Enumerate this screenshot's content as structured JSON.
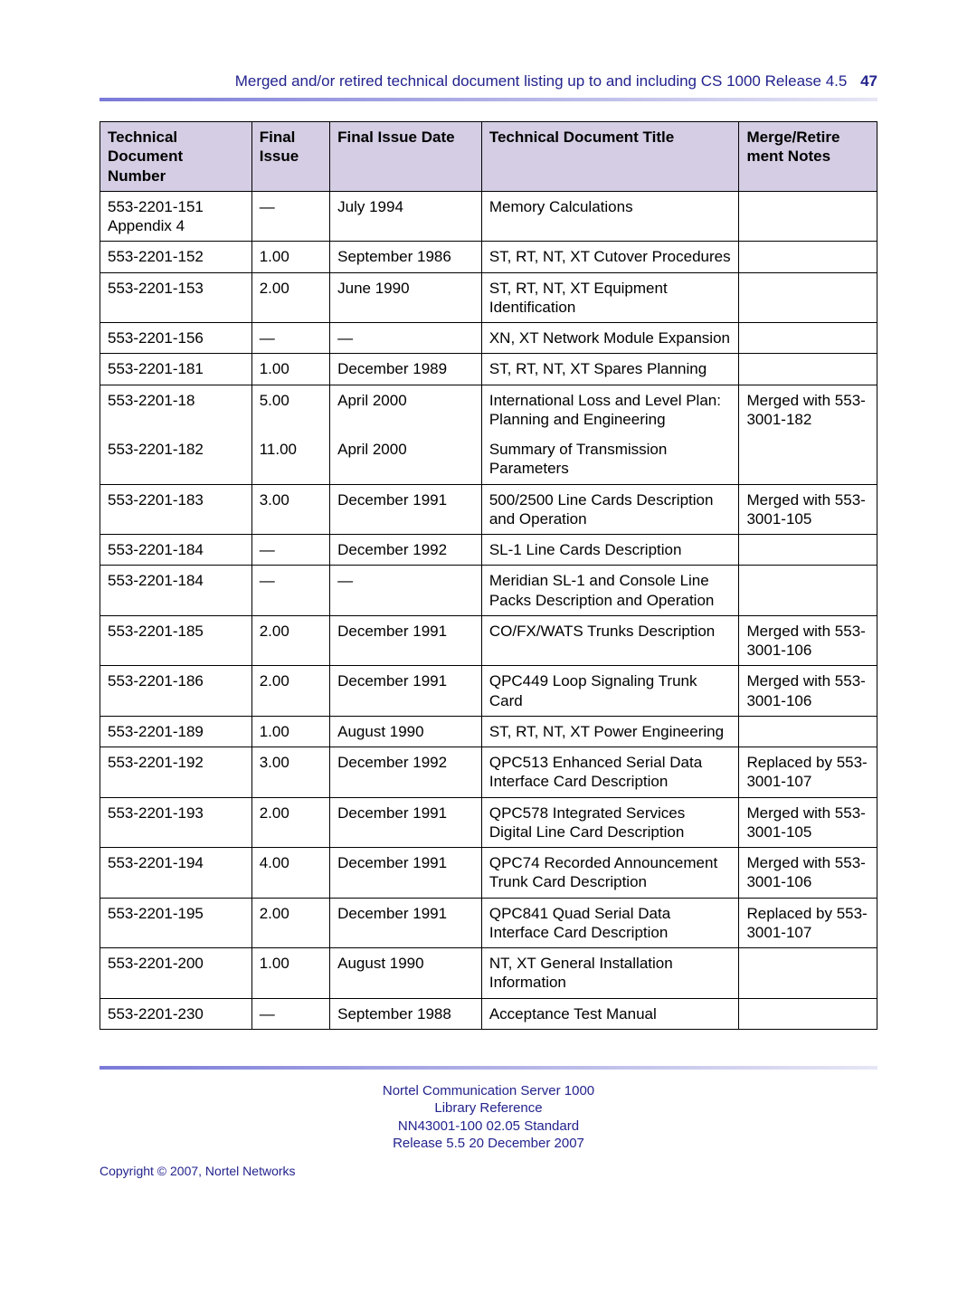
{
  "header": {
    "title": "Merged and/or retired technical document listing up to and including CS 1000 Release 4.5",
    "page_number": "47"
  },
  "colors": {
    "brand_text": "#23238e",
    "header_bg": "#d4cde3",
    "border": "#000000",
    "sep_from": "#7a7ad8",
    "sep_to": "#e6e6f5"
  },
  "columns": [
    "Technical Document Number",
    "Final Issue",
    "Final Issue Date",
    "Technical Document Title",
    "Merge/Retire ment Notes"
  ],
  "rows": [
    {
      "num": "553-2201-151 Appendix 4",
      "issue": "—",
      "date": "July 1994",
      "title": "Memory Calculations",
      "notes": ""
    },
    {
      "num": "553-2201-152",
      "issue": "1.00",
      "date": "September 1986",
      "title": "ST, RT, NT, XT Cutover Procedures",
      "notes": ""
    },
    {
      "num": "553-2201-153",
      "issue": "2.00",
      "date": "June 1990",
      "title": "ST, RT, NT, XT Equipment Identification",
      "notes": ""
    },
    {
      "num": "553-2201-156",
      "issue": "—",
      "date": "—",
      "title": "XN, XT Network Module Expansion",
      "notes": ""
    },
    {
      "num": "553-2201-181",
      "issue": "1.00",
      "date": "December 1989",
      "title": "ST, RT, NT, XT Spares Planning",
      "notes": ""
    },
    {
      "num": "553-2201-18",
      "issue": "5.00",
      "date": "April 2000",
      "title": "International Loss and Level Plan: Planning and Engineering",
      "notes": "Merged with 553-3001-182"
    },
    {
      "num": "553-2201-182",
      "issue": "11.00",
      "date": "April 2000",
      "title": "Summary of Transmission Parameters",
      "notes": ""
    },
    {
      "num": "553-2201-183",
      "issue": "3.00",
      "date": "December 1991",
      "title": "500/2500 Line Cards Description and Operation",
      "notes": "Merged with 553-3001-105"
    },
    {
      "num": "553-2201-184",
      "issue": "—",
      "date": "December 1992",
      "title": "SL-1 Line Cards Description",
      "notes": ""
    },
    {
      "num": "553-2201-184",
      "issue": "—",
      "date": "—",
      "title": "Meridian SL-1 and Console Line Packs Description and Operation",
      "notes": ""
    },
    {
      "num": "553-2201-185",
      "issue": "2.00",
      "date": "December 1991",
      "title": "CO/FX/WATS Trunks Description",
      "notes": "Merged with 553-3001-106"
    },
    {
      "num": "553-2201-186",
      "issue": "2.00",
      "date": "December 1991",
      "title": "QPC449 Loop Signaling Trunk Card",
      "notes": "Merged with 553-3001-106"
    },
    {
      "num": "553-2201-189",
      "issue": "1.00",
      "date": "August 1990",
      "title": "ST, RT, NT, XT Power Engineering",
      "notes": ""
    },
    {
      "num": "553-2201-192",
      "issue": "3.00",
      "date": "December 1992",
      "title": "QPC513 Enhanced Serial Data Interface Card Description",
      "notes": "Replaced by 553-3001-107"
    },
    {
      "num": "553-2201-193",
      "issue": "2.00",
      "date": "December 1991",
      "title": "QPC578 Integrated Services Digital Line Card Description",
      "notes": "Merged with 553-3001-105"
    },
    {
      "num": "553-2201-194",
      "issue": "4.00",
      "date": "December 1991",
      "title": "QPC74 Recorded Announcement Trunk Card Description",
      "notes": "Merged with 553-3001-106"
    },
    {
      "num": "553-2201-195",
      "issue": "2.00",
      "date": "December 1991",
      "title": "QPC841 Quad Serial Data Interface Card Description",
      "notes": "Replaced by 553-3001-107"
    },
    {
      "num": "553-2201-200",
      "issue": "1.00",
      "date": "August 1990",
      "title": "NT, XT General Installation Information",
      "notes": ""
    },
    {
      "num": "553-2201-230",
      "issue": "—",
      "date": "September 1988",
      "title": "Acceptance Test Manual",
      "notes": ""
    }
  ],
  "row_groups": [
    [
      0
    ],
    [
      1
    ],
    [
      2
    ],
    [
      3
    ],
    [
      4
    ],
    [
      5,
      6
    ],
    [
      7
    ],
    [
      8
    ],
    [
      9
    ],
    [
      10
    ],
    [
      11
    ],
    [
      12
    ],
    [
      13
    ],
    [
      14
    ],
    [
      15
    ],
    [
      16
    ],
    [
      17
    ],
    [
      18
    ]
  ],
  "footer": {
    "line1": "Nortel Communication Server 1000",
    "line2": "Library Reference",
    "line3": "NN43001-100   02.05   Standard",
    "line4": "Release 5.5   20 December 2007",
    "copyright": "Copyright © 2007, Nortel Networks"
  }
}
